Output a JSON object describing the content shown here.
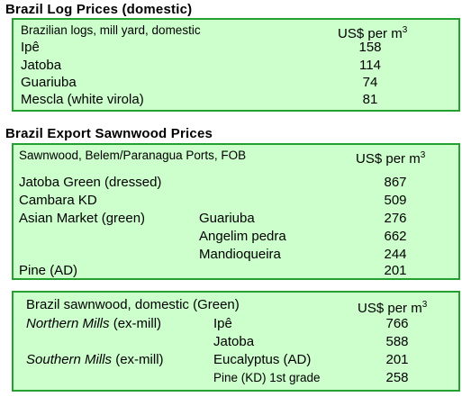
{
  "log_prices": {
    "title": "Brazil Log Prices (domestic)",
    "header": "Brazilian logs, mill yard, domestic",
    "unit": "US$ per m",
    "unit_sup": "3",
    "rows": [
      {
        "label": "Ipê",
        "value": "158"
      },
      {
        "label": "Jatoba",
        "value": "114"
      },
      {
        "label": "Guariuba",
        "value": "74"
      },
      {
        "label": "Mescla (white virola)",
        "value": "81"
      }
    ]
  },
  "export_sawnwood": {
    "title": "Brazil Export Sawnwood Prices",
    "header": "Sawnwood, Belem/Paranagua Ports, FOB",
    "unit": "US$ per m",
    "unit_sup": "3",
    "rows": [
      {
        "label": "Jatoba Green (dressed)",
        "sub": "",
        "value": "867"
      },
      {
        "label": "Cambara KD",
        "sub": "",
        "value": "509"
      },
      {
        "label": "Asian Market (green)",
        "sub": "Guariuba",
        "value": "276"
      },
      {
        "label": "",
        "sub": "Angelim pedra",
        "value": "662"
      },
      {
        "label": "",
        "sub": "Mandioqueira",
        "value": "244"
      },
      {
        "label": "Pine (AD)",
        "sub": "",
        "value": "201"
      }
    ]
  },
  "domestic_sawnwood": {
    "header": "Brazil sawnwood, domestic (Green)",
    "unit": "US$ per m",
    "unit_sup": "3",
    "rows": [
      {
        "label": "Northern Mills",
        "label_suffix": " (ex-mill)",
        "sub": "Ipê",
        "value": "766"
      },
      {
        "label": "",
        "label_suffix": "",
        "sub": "Jatoba",
        "value": "588"
      },
      {
        "label": "Southern Mills",
        "label_suffix": " (ex-mill)",
        "sub": "Eucalyptus (AD)",
        "value": "201"
      },
      {
        "label": "",
        "label_suffix": "",
        "sub": "Pine (KD) 1st grade",
        "value": "258"
      }
    ]
  }
}
